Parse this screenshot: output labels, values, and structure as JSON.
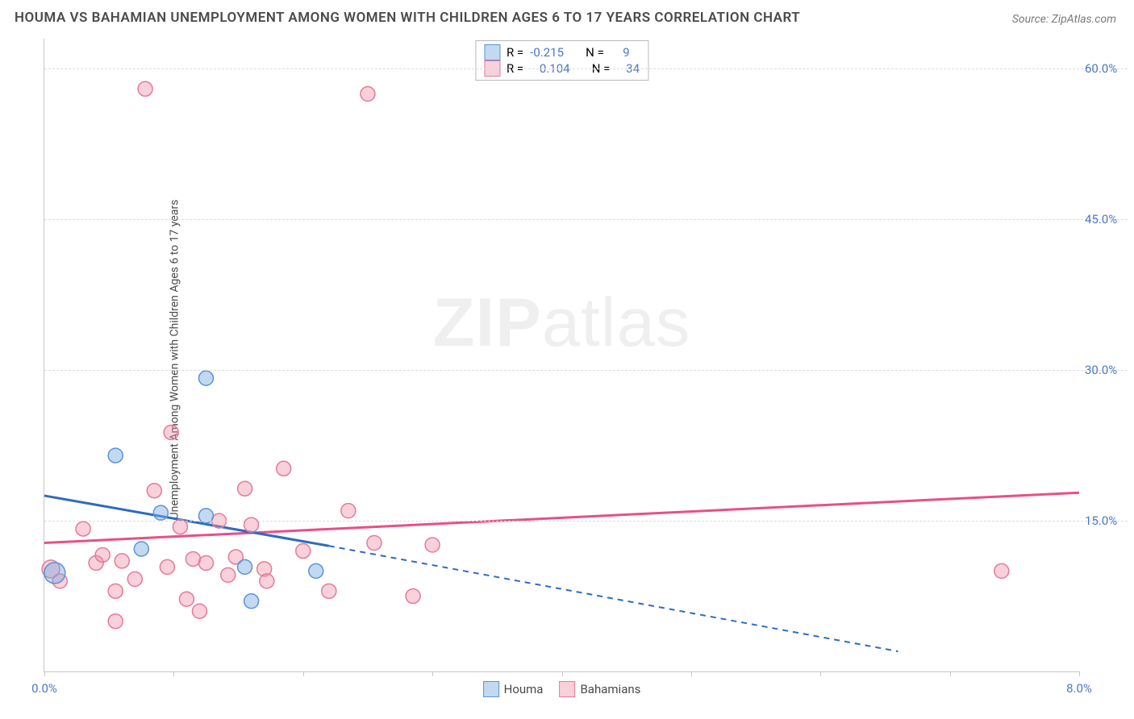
{
  "title": "HOUMA VS BAHAMIAN UNEMPLOYMENT AMONG WOMEN WITH CHILDREN AGES 6 TO 17 YEARS CORRELATION CHART",
  "source_prefix": "Source: ",
  "source": "ZipAtlas.com",
  "y_axis_label": "Unemployment Among Women with Children Ages 6 to 17 years",
  "watermark_bold": "ZIP",
  "watermark_light": "atlas",
  "chart": {
    "type": "scatter",
    "background_color": "#ffffff",
    "grid_color": "#dddddd",
    "axis_color": "#c6c6c6",
    "tick_label_color": "#4a78c8",
    "xlim": [
      0,
      8
    ],
    "ylim": [
      0,
      63
    ],
    "x_ticks": [
      0,
      1,
      2,
      3,
      4,
      5,
      6,
      7,
      8
    ],
    "x_tick_labels": {
      "0": "0.0%",
      "8": "8.0%"
    },
    "y_ticks": [
      15,
      30,
      45,
      60
    ],
    "y_tick_labels": {
      "15": "15.0%",
      "30": "30.0%",
      "45": "45.0%",
      "60": "60.0%"
    },
    "series": [
      {
        "name": "Houma",
        "color_fill": "rgba(120,170,225,0.45)",
        "color_stroke": "#5a94d6",
        "line_color": "#2d6cc0",
        "marker_radius": 9,
        "R": "-0.215",
        "N": "9",
        "points": [
          {
            "x": 0.08,
            "y": 9.8,
            "r": 13
          },
          {
            "x": 0.55,
            "y": 21.5,
            "r": 9
          },
          {
            "x": 0.75,
            "y": 12.2,
            "r": 9
          },
          {
            "x": 0.9,
            "y": 15.8,
            "r": 9
          },
          {
            "x": 1.25,
            "y": 29.2,
            "r": 9
          },
          {
            "x": 1.25,
            "y": 15.5,
            "r": 9
          },
          {
            "x": 1.55,
            "y": 10.4,
            "r": 9
          },
          {
            "x": 1.6,
            "y": 7.0,
            "r": 9
          },
          {
            "x": 2.1,
            "y": 10.0,
            "r": 9
          }
        ],
        "trend": {
          "x1": 0,
          "y1": 17.5,
          "x2": 2.2,
          "y2": 12.5,
          "x2_dash": 6.6,
          "y2_dash": 2.0
        }
      },
      {
        "name": "Bahamians",
        "color_fill": "rgba(240,140,165,0.40)",
        "color_stroke": "#e57a9a",
        "line_color": "#e94e87",
        "marker_radius": 9,
        "R": "0.104",
        "N": "34",
        "points": [
          {
            "x": 0.05,
            "y": 10.2,
            "r": 11
          },
          {
            "x": 0.12,
            "y": 9.0,
            "r": 9
          },
          {
            "x": 0.3,
            "y": 14.2,
            "r": 9
          },
          {
            "x": 0.4,
            "y": 10.8,
            "r": 9
          },
          {
            "x": 0.45,
            "y": 11.6,
            "r": 9
          },
          {
            "x": 0.55,
            "y": 8.0,
            "r": 9
          },
          {
            "x": 0.55,
            "y": 5.0,
            "r": 9
          },
          {
            "x": 0.6,
            "y": 11.0,
            "r": 9
          },
          {
            "x": 0.7,
            "y": 9.2,
            "r": 9
          },
          {
            "x": 0.78,
            "y": 58.0,
            "r": 9
          },
          {
            "x": 0.85,
            "y": 18.0,
            "r": 9
          },
          {
            "x": 0.95,
            "y": 10.4,
            "r": 9
          },
          {
            "x": 0.98,
            "y": 23.8,
            "r": 9
          },
          {
            "x": 1.05,
            "y": 14.4,
            "r": 9
          },
          {
            "x": 1.1,
            "y": 7.2,
            "r": 9
          },
          {
            "x": 1.15,
            "y": 11.2,
            "r": 9
          },
          {
            "x": 1.2,
            "y": 6.0,
            "r": 9
          },
          {
            "x": 1.25,
            "y": 10.8,
            "r": 9
          },
          {
            "x": 1.35,
            "y": 15.0,
            "r": 9
          },
          {
            "x": 1.42,
            "y": 9.6,
            "r": 9
          },
          {
            "x": 1.48,
            "y": 11.4,
            "r": 9
          },
          {
            "x": 1.55,
            "y": 18.2,
            "r": 9
          },
          {
            "x": 1.6,
            "y": 14.6,
            "r": 9
          },
          {
            "x": 1.7,
            "y": 10.2,
            "r": 9
          },
          {
            "x": 1.72,
            "y": 9.0,
            "r": 9
          },
          {
            "x": 1.85,
            "y": 20.2,
            "r": 9
          },
          {
            "x": 2.0,
            "y": 12.0,
            "r": 9
          },
          {
            "x": 2.2,
            "y": 8.0,
            "r": 9
          },
          {
            "x": 2.35,
            "y": 16.0,
            "r": 9
          },
          {
            "x": 2.5,
            "y": 57.5,
            "r": 9
          },
          {
            "x": 2.55,
            "y": 12.8,
            "r": 9
          },
          {
            "x": 2.85,
            "y": 7.5,
            "r": 9
          },
          {
            "x": 3.0,
            "y": 12.6,
            "r": 9
          },
          {
            "x": 7.4,
            "y": 10.0,
            "r": 9
          }
        ],
        "trend": {
          "x1": 0,
          "y1": 12.8,
          "x2": 8,
          "y2": 17.8
        }
      }
    ],
    "legend_top_labels": {
      "R": "R =",
      "N": "N ="
    },
    "legend_bottom": [
      "Houma",
      "Bahamians"
    ]
  }
}
